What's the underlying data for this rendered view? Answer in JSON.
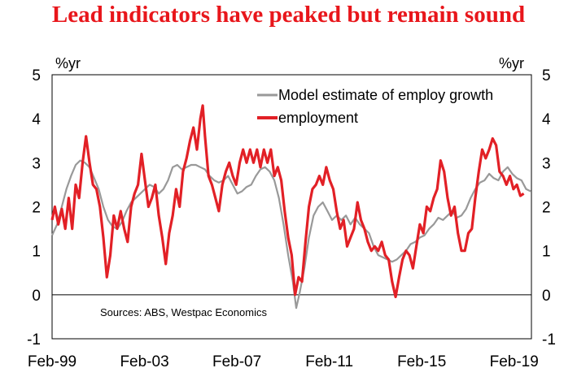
{
  "chart_data": {
    "type": "line",
    "title": "Lead indicators have peaked but remain sound",
    "ylabel_left": "%yr",
    "ylabel_right": "%yr",
    "ylim": [
      -1,
      5
    ],
    "yticks": [
      "-1",
      "0",
      "1",
      "2",
      "3",
      "4",
      "5"
    ],
    "x_range": [
      1999.08,
      2019.83
    ],
    "x_ticks": [
      {
        "label": "Feb-99",
        "x": 1999.08
      },
      {
        "label": "Feb-03",
        "x": 2003.08
      },
      {
        "label": "Feb-07",
        "x": 2007.08
      },
      {
        "label": "Feb-11",
        "x": 2011.08
      },
      {
        "label": "Feb-15",
        "x": 2015.08
      },
      {
        "label": "Feb-19",
        "x": 2019.08
      }
    ],
    "source": "Sources: ABS, Westpac Economics",
    "series": [
      {
        "name": "Model estimate of employ growth",
        "color": "#999999",
        "points": [
          [
            1999.08,
            1.35
          ],
          [
            1999.3,
            1.6
          ],
          [
            1999.5,
            2.0
          ],
          [
            1999.7,
            2.4
          ],
          [
            1999.9,
            2.7
          ],
          [
            2000.1,
            2.95
          ],
          [
            2000.3,
            3.05
          ],
          [
            2000.5,
            3.0
          ],
          [
            2000.7,
            2.9
          ],
          [
            2000.9,
            2.65
          ],
          [
            2001.1,
            2.4
          ],
          [
            2001.3,
            2.0
          ],
          [
            2001.5,
            1.7
          ],
          [
            2001.7,
            1.55
          ],
          [
            2001.9,
            1.5
          ],
          [
            2002.1,
            1.65
          ],
          [
            2002.3,
            1.9
          ],
          [
            2002.5,
            2.1
          ],
          [
            2002.7,
            2.2
          ],
          [
            2002.9,
            2.3
          ],
          [
            2003.1,
            2.4
          ],
          [
            2003.3,
            2.5
          ],
          [
            2003.5,
            2.45
          ],
          [
            2003.7,
            2.3
          ],
          [
            2003.9,
            2.4
          ],
          [
            2004.1,
            2.6
          ],
          [
            2004.3,
            2.9
          ],
          [
            2004.5,
            2.95
          ],
          [
            2004.7,
            2.85
          ],
          [
            2004.9,
            2.9
          ],
          [
            2005.1,
            2.95
          ],
          [
            2005.3,
            2.95
          ],
          [
            2005.5,
            2.9
          ],
          [
            2005.7,
            2.85
          ],
          [
            2005.9,
            2.7
          ],
          [
            2006.1,
            2.6
          ],
          [
            2006.3,
            2.55
          ],
          [
            2006.5,
            2.6
          ],
          [
            2006.7,
            2.7
          ],
          [
            2006.9,
            2.5
          ],
          [
            2007.1,
            2.3
          ],
          [
            2007.3,
            2.35
          ],
          [
            2007.5,
            2.45
          ],
          [
            2007.7,
            2.5
          ],
          [
            2007.9,
            2.7
          ],
          [
            2008.1,
            2.85
          ],
          [
            2008.3,
            2.9
          ],
          [
            2008.5,
            2.8
          ],
          [
            2008.7,
            2.6
          ],
          [
            2008.9,
            2.2
          ],
          [
            2009.1,
            1.6
          ],
          [
            2009.3,
            0.9
          ],
          [
            2009.5,
            0.3
          ],
          [
            2009.65,
            -0.3
          ],
          [
            2009.8,
            0.05
          ],
          [
            2010.0,
            0.6
          ],
          [
            2010.2,
            1.3
          ],
          [
            2010.4,
            1.8
          ],
          [
            2010.6,
            2.0
          ],
          [
            2010.8,
            2.1
          ],
          [
            2011.0,
            1.9
          ],
          [
            2011.2,
            1.7
          ],
          [
            2011.4,
            1.8
          ],
          [
            2011.6,
            1.7
          ],
          [
            2011.8,
            1.8
          ],
          [
            2012.0,
            1.6
          ],
          [
            2012.2,
            1.75
          ],
          [
            2012.4,
            1.6
          ],
          [
            2012.6,
            1.5
          ],
          [
            2012.8,
            1.4
          ],
          [
            2013.0,
            1.1
          ],
          [
            2013.2,
            0.9
          ],
          [
            2013.4,
            0.85
          ],
          [
            2013.6,
            0.8
          ],
          [
            2013.8,
            0.75
          ],
          [
            2014.0,
            0.8
          ],
          [
            2014.2,
            0.9
          ],
          [
            2014.4,
            1.0
          ],
          [
            2014.6,
            1.15
          ],
          [
            2014.8,
            1.2
          ],
          [
            2015.0,
            1.3
          ],
          [
            2015.2,
            1.35
          ],
          [
            2015.4,
            1.5
          ],
          [
            2015.6,
            1.6
          ],
          [
            2015.8,
            1.75
          ],
          [
            2016.0,
            1.7
          ],
          [
            2016.2,
            1.8
          ],
          [
            2016.4,
            1.9
          ],
          [
            2016.6,
            1.75
          ],
          [
            2016.8,
            1.8
          ],
          [
            2017.0,
            1.95
          ],
          [
            2017.2,
            2.2
          ],
          [
            2017.4,
            2.4
          ],
          [
            2017.6,
            2.55
          ],
          [
            2017.8,
            2.6
          ],
          [
            2018.0,
            2.75
          ],
          [
            2018.2,
            2.65
          ],
          [
            2018.4,
            2.6
          ],
          [
            2018.6,
            2.8
          ],
          [
            2018.8,
            2.9
          ],
          [
            2019.0,
            2.75
          ],
          [
            2019.2,
            2.65
          ],
          [
            2019.4,
            2.6
          ],
          [
            2019.6,
            2.4
          ],
          [
            2019.8,
            2.35
          ]
        ]
      },
      {
        "name": "employment",
        "color": "#e22026",
        "points": [
          [
            1999.08,
            1.7
          ],
          [
            1999.2,
            2.0
          ],
          [
            1999.35,
            1.6
          ],
          [
            1999.5,
            1.95
          ],
          [
            1999.65,
            1.5
          ],
          [
            1999.8,
            2.2
          ],
          [
            1999.95,
            1.5
          ],
          [
            2000.1,
            2.5
          ],
          [
            2000.25,
            2.2
          ],
          [
            2000.4,
            3.0
          ],
          [
            2000.55,
            3.6
          ],
          [
            2000.7,
            3.0
          ],
          [
            2000.85,
            2.5
          ],
          [
            2001.0,
            2.4
          ],
          [
            2001.15,
            2.0
          ],
          [
            2001.3,
            1.3
          ],
          [
            2001.45,
            0.4
          ],
          [
            2001.6,
            0.9
          ],
          [
            2001.75,
            1.8
          ],
          [
            2001.9,
            1.5
          ],
          [
            2002.05,
            1.9
          ],
          [
            2002.2,
            1.5
          ],
          [
            2002.35,
            1.2
          ],
          [
            2002.5,
            2.0
          ],
          [
            2002.65,
            2.3
          ],
          [
            2002.8,
            2.5
          ],
          [
            2002.95,
            3.2
          ],
          [
            2003.1,
            2.6
          ],
          [
            2003.25,
            2.0
          ],
          [
            2003.4,
            2.2
          ],
          [
            2003.55,
            2.5
          ],
          [
            2003.7,
            1.8
          ],
          [
            2003.85,
            1.3
          ],
          [
            2004.0,
            0.7
          ],
          [
            2004.15,
            1.4
          ],
          [
            2004.3,
            1.8
          ],
          [
            2004.45,
            2.4
          ],
          [
            2004.6,
            2.0
          ],
          [
            2004.75,
            2.8
          ],
          [
            2004.9,
            3.1
          ],
          [
            2005.05,
            3.5
          ],
          [
            2005.2,
            3.8
          ],
          [
            2005.35,
            3.3
          ],
          [
            2005.5,
            4.0
          ],
          [
            2005.6,
            4.3
          ],
          [
            2005.7,
            3.6
          ],
          [
            2005.85,
            2.7
          ],
          [
            2006.0,
            2.5
          ],
          [
            2006.15,
            2.2
          ],
          [
            2006.3,
            1.9
          ],
          [
            2006.45,
            2.5
          ],
          [
            2006.6,
            2.8
          ],
          [
            2006.75,
            3.0
          ],
          [
            2006.9,
            2.7
          ],
          [
            2007.05,
            2.5
          ],
          [
            2007.2,
            3.0
          ],
          [
            2007.35,
            3.3
          ],
          [
            2007.5,
            3.0
          ],
          [
            2007.65,
            3.3
          ],
          [
            2007.8,
            3.0
          ],
          [
            2007.95,
            3.3
          ],
          [
            2008.1,
            2.9
          ],
          [
            2008.25,
            3.3
          ],
          [
            2008.4,
            3.0
          ],
          [
            2008.55,
            3.3
          ],
          [
            2008.7,
            2.7
          ],
          [
            2008.85,
            2.9
          ],
          [
            2009.0,
            2.6
          ],
          [
            2009.15,
            1.9
          ],
          [
            2009.3,
            1.3
          ],
          [
            2009.45,
            0.9
          ],
          [
            2009.6,
            0.0
          ],
          [
            2009.75,
            0.4
          ],
          [
            2009.9,
            0.3
          ],
          [
            2010.05,
            1.2
          ],
          [
            2010.2,
            2.0
          ],
          [
            2010.35,
            2.4
          ],
          [
            2010.5,
            2.5
          ],
          [
            2010.65,
            2.7
          ],
          [
            2010.8,
            2.5
          ],
          [
            2010.95,
            2.9
          ],
          [
            2011.1,
            2.6
          ],
          [
            2011.25,
            2.4
          ],
          [
            2011.4,
            1.9
          ],
          [
            2011.55,
            1.5
          ],
          [
            2011.7,
            1.7
          ],
          [
            2011.85,
            1.1
          ],
          [
            2012.0,
            1.3
          ],
          [
            2012.15,
            1.5
          ],
          [
            2012.3,
            2.1
          ],
          [
            2012.45,
            1.7
          ],
          [
            2012.6,
            1.5
          ],
          [
            2012.75,
            1.2
          ],
          [
            2012.9,
            1.0
          ],
          [
            2013.05,
            1.1
          ],
          [
            2013.2,
            1.0
          ],
          [
            2013.35,
            1.2
          ],
          [
            2013.5,
            0.9
          ],
          [
            2013.65,
            0.8
          ],
          [
            2013.8,
            0.3
          ],
          [
            2013.95,
            -0.05
          ],
          [
            2014.1,
            0.4
          ],
          [
            2014.25,
            0.8
          ],
          [
            2014.4,
            1.0
          ],
          [
            2014.55,
            0.9
          ],
          [
            2014.7,
            0.6
          ],
          [
            2014.85,
            1.1
          ],
          [
            2015.0,
            1.6
          ],
          [
            2015.15,
            1.4
          ],
          [
            2015.3,
            2.0
          ],
          [
            2015.45,
            1.9
          ],
          [
            2015.6,
            2.2
          ],
          [
            2015.75,
            2.4
          ],
          [
            2015.9,
            3.05
          ],
          [
            2016.05,
            2.8
          ],
          [
            2016.2,
            2.2
          ],
          [
            2016.35,
            1.8
          ],
          [
            2016.5,
            2.0
          ],
          [
            2016.65,
            1.4
          ],
          [
            2016.8,
            1.0
          ],
          [
            2016.95,
            1.0
          ],
          [
            2017.1,
            1.4
          ],
          [
            2017.25,
            1.5
          ],
          [
            2017.4,
            2.2
          ],
          [
            2017.55,
            2.8
          ],
          [
            2017.7,
            3.3
          ],
          [
            2017.85,
            3.1
          ],
          [
            2018.0,
            3.3
          ],
          [
            2018.15,
            3.55
          ],
          [
            2018.3,
            3.4
          ],
          [
            2018.45,
            2.8
          ],
          [
            2018.6,
            2.7
          ],
          [
            2018.75,
            2.5
          ],
          [
            2018.9,
            2.7
          ],
          [
            2019.05,
            2.4
          ],
          [
            2019.2,
            2.5
          ],
          [
            2019.35,
            2.25
          ],
          [
            2019.5,
            2.3
          ]
        ]
      }
    ]
  }
}
